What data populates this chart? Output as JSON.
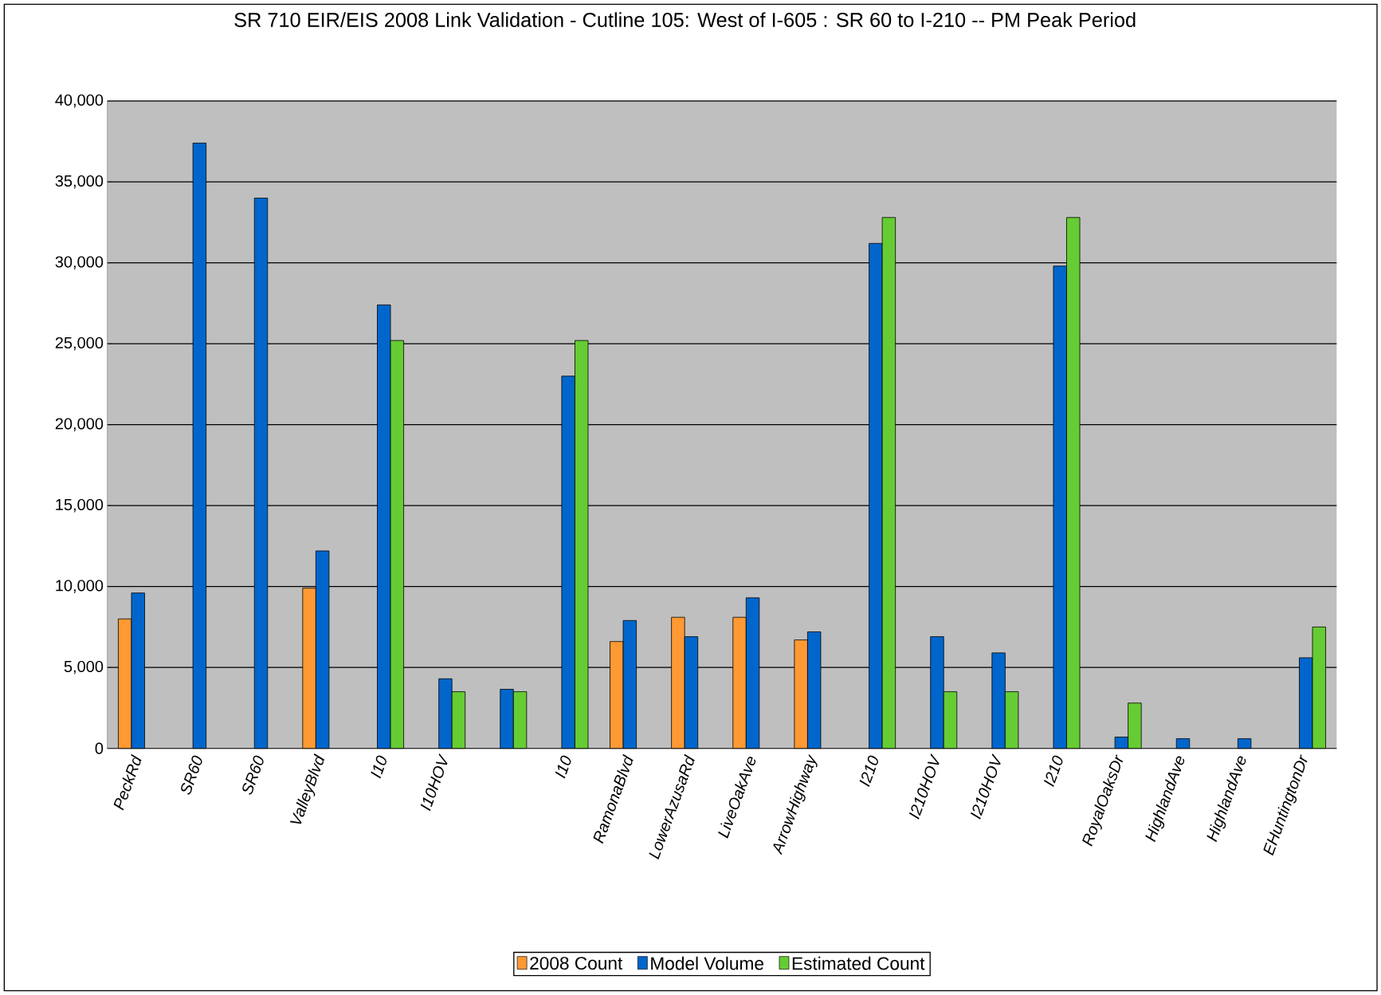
{
  "chart_data": {
    "type": "bar",
    "title": "SR 710 EIR/EIS 2008 Link Validation - Cutline 105: West of I-605 : SR 60 to I-210 -- PM Peak Period",
    "categories": [
      "PeckRd",
      "SR60",
      "SR60",
      "ValleyBlvd",
      "I10",
      "I10HOV",
      null,
      "I10",
      "RamonaBlvd",
      "LowerAzusaRd",
      "LiveOakAve",
      "ArrowHighway",
      "I210",
      "I210HOV",
      "I210HOV",
      "I210",
      "RoyalOaksDr",
      "HighlandAve",
      "HighlandAve",
      "EHuntingtonDr"
    ],
    "series": [
      {
        "name": "2008 Count",
        "color": "#ff9933",
        "values": [
          8000,
          null,
          null,
          9900,
          null,
          null,
          null,
          null,
          6600,
          8100,
          8100,
          6700,
          null,
          null,
          null,
          null,
          null,
          null,
          null,
          null
        ]
      },
      {
        "name": "Model Volume",
        "color": "#0066cc",
        "values": [
          9600,
          37400,
          34000,
          12200,
          27400,
          4300,
          3650,
          23000,
          7900,
          6900,
          9300,
          7200,
          31200,
          6900,
          5900,
          29800,
          700,
          600,
          600,
          5600
        ]
      },
      {
        "name": "Estimated Count",
        "color": "#66cc33",
        "values": [
          null,
          null,
          null,
          null,
          25200,
          3500,
          3500,
          25200,
          null,
          null,
          null,
          null,
          32800,
          3500,
          3500,
          32800,
          2800,
          null,
          null,
          7500
        ]
      }
    ],
    "ylim": [
      0,
      40000
    ],
    "yticks": [
      {
        "value": 0,
        "label": "0"
      },
      {
        "value": 5000,
        "label": "5,000"
      },
      {
        "value": 10000,
        "label": "10,000"
      },
      {
        "value": 15000,
        "label": "15,000"
      },
      {
        "value": 20000,
        "label": "20,000"
      },
      {
        "value": 25000,
        "label": "25,000"
      },
      {
        "value": 30000,
        "label": "30,000"
      },
      {
        "value": 35000,
        "label": "35,000"
      },
      {
        "value": 40000,
        "label": "40,000"
      }
    ],
    "grid": "y",
    "legend": "bottom"
  }
}
